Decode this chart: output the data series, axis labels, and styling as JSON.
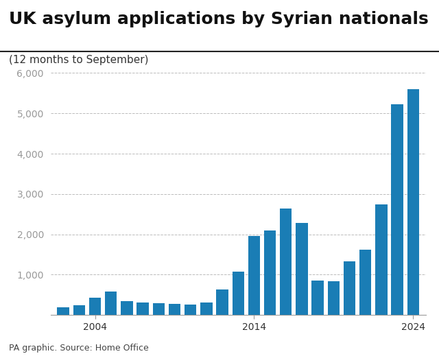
{
  "title": "UK asylum applications by Syrian nationals",
  "subtitle": "(12 months to September)",
  "source": "PA graphic. Source: Home Office",
  "bar_color": "#1a7db5",
  "years": [
    2002,
    2003,
    2004,
    2005,
    2006,
    2007,
    2008,
    2009,
    2010,
    2011,
    2012,
    2013,
    2014,
    2015,
    2016,
    2017,
    2018,
    2019,
    2020,
    2021,
    2022,
    2023,
    2024
  ],
  "values": [
    200,
    240,
    430,
    590,
    340,
    310,
    290,
    280,
    260,
    310,
    630,
    1080,
    1960,
    2090,
    2640,
    2280,
    860,
    840,
    1330,
    1620,
    2740,
    5230,
    5600
  ],
  "ylim": [
    0,
    6000
  ],
  "yticks": [
    1000,
    2000,
    3000,
    4000,
    5000,
    6000
  ],
  "xtick_positions": [
    2004,
    2014,
    2024
  ],
  "background_color": "#ffffff",
  "grid_color": "#bbbbbb",
  "title_fontsize": 18,
  "subtitle_fontsize": 11,
  "source_fontsize": 9,
  "tick_fontsize": 10,
  "title_color": "#111111",
  "subtitle_color": "#333333",
  "tick_color": "#999999",
  "spine_color": "#999999"
}
